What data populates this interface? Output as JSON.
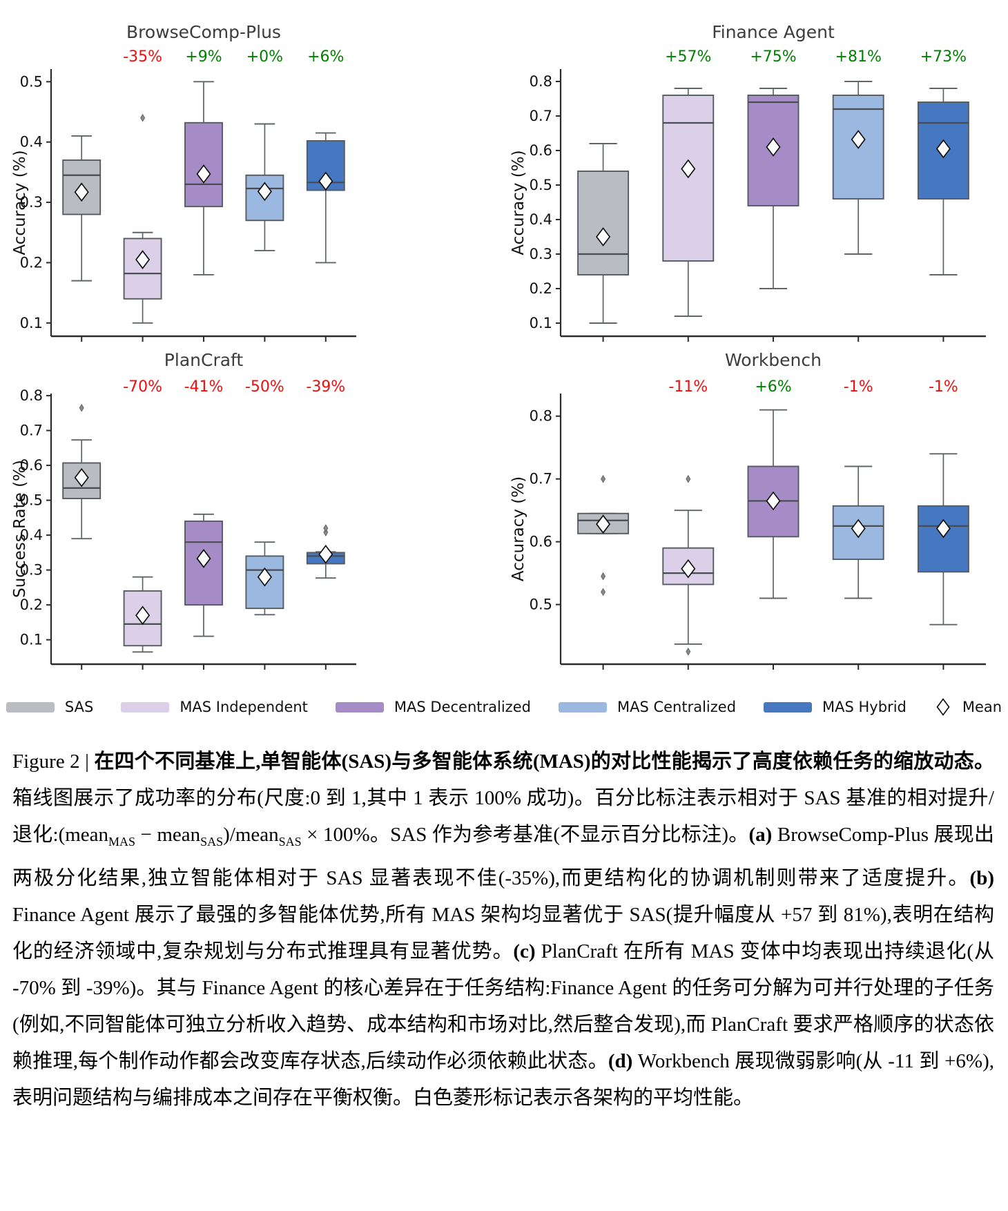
{
  "style": {
    "box_edge": "#555b60",
    "whisker": "#5f6468",
    "median_line": "#474d52",
    "spine": "#2b2b2b",
    "title_color": "#3c3c3c",
    "tick_color": "#111111",
    "red": "#f20d0d",
    "green": "#008000",
    "mean_marker_fill": "#ffffff",
    "mean_marker_edge": "#111111",
    "outlier_color": "#8a8a8a"
  },
  "legend": {
    "items": [
      {
        "label": "SAS",
        "color": "#b9bcc0"
      },
      {
        "label": "MAS Independent",
        "color": "#dcd0e8"
      },
      {
        "label": "MAS Decentralized",
        "color": "#a68cc7"
      },
      {
        "label": "MAS Centralized",
        "color": "#9bb9e0"
      },
      {
        "label": "MAS Hybrid",
        "color": "#4678c2"
      },
      {
        "label": "Mean",
        "marker": "diamond"
      }
    ]
  },
  "chart_data": [
    {
      "type": "box",
      "title": "BrowseComp-Plus",
      "ylabel": "Accuracy (%)",
      "ylim": [
        0.078,
        0.521
      ],
      "yticks": [
        0.1,
        0.2,
        0.3,
        0.4,
        0.5
      ],
      "pct_labels": [
        {
          "text": "-35%",
          "color": "red"
        },
        {
          "text": "+9%",
          "color": "green"
        },
        {
          "text": "+0%",
          "color": "green"
        },
        {
          "text": "+6%",
          "color": "green"
        }
      ],
      "boxes": [
        {
          "name": "SAS",
          "lo": 0.17,
          "q1": 0.28,
          "med": 0.345,
          "q3": 0.37,
          "hi": 0.41,
          "mean": 0.317,
          "outliers": []
        },
        {
          "name": "MAS Independent",
          "lo": 0.1,
          "q1": 0.14,
          "med": 0.182,
          "q3": 0.24,
          "hi": 0.25,
          "mean": 0.205,
          "outliers": [
            0.44
          ]
        },
        {
          "name": "MAS Decentralized",
          "lo": 0.18,
          "q1": 0.293,
          "med": 0.33,
          "q3": 0.432,
          "hi": 0.5,
          "mean": 0.347,
          "outliers": []
        },
        {
          "name": "MAS Centralized",
          "lo": 0.22,
          "q1": 0.27,
          "med": 0.323,
          "q3": 0.345,
          "hi": 0.43,
          "mean": 0.318,
          "outliers": []
        },
        {
          "name": "MAS Hybrid",
          "lo": 0.2,
          "q1": 0.32,
          "med": 0.333,
          "q3": 0.402,
          "hi": 0.415,
          "mean": 0.335,
          "outliers": []
        }
      ]
    },
    {
      "type": "box",
      "title": "Finance Agent",
      "ylabel": "Accuracy (%)",
      "ylim": [
        0.062,
        0.836
      ],
      "yticks": [
        0.1,
        0.2,
        0.3,
        0.4,
        0.5,
        0.6,
        0.7,
        0.8
      ],
      "pct_labels": [
        {
          "text": "+57%",
          "color": "green"
        },
        {
          "text": "+75%",
          "color": "green"
        },
        {
          "text": "+81%",
          "color": "green"
        },
        {
          "text": "+73%",
          "color": "green"
        }
      ],
      "boxes": [
        {
          "name": "SAS",
          "lo": 0.1,
          "q1": 0.24,
          "med": 0.3,
          "q3": 0.54,
          "hi": 0.62,
          "mean": 0.35,
          "outliers": []
        },
        {
          "name": "MAS Independent",
          "lo": 0.12,
          "q1": 0.28,
          "med": 0.68,
          "q3": 0.76,
          "hi": 0.78,
          "mean": 0.547,
          "outliers": []
        },
        {
          "name": "MAS Decentralized",
          "lo": 0.2,
          "q1": 0.44,
          "med": 0.74,
          "q3": 0.76,
          "hi": 0.78,
          "mean": 0.61,
          "outliers": []
        },
        {
          "name": "MAS Centralized",
          "lo": 0.3,
          "q1": 0.46,
          "med": 0.72,
          "q3": 0.76,
          "hi": 0.8,
          "mean": 0.632,
          "outliers": []
        },
        {
          "name": "MAS Hybrid",
          "lo": 0.24,
          "q1": 0.46,
          "med": 0.68,
          "q3": 0.74,
          "hi": 0.78,
          "mean": 0.605,
          "outliers": []
        }
      ]
    },
    {
      "type": "box",
      "title": "PlanCraft",
      "ylabel": "Success Rate (%)",
      "ylim": [
        0.03,
        0.806
      ],
      "yticks": [
        0.1,
        0.2,
        0.3,
        0.4,
        0.5,
        0.6,
        0.7,
        0.8
      ],
      "pct_labels": [
        {
          "text": "-70%",
          "color": "red"
        },
        {
          "text": "-41%",
          "color": "red"
        },
        {
          "text": "-50%",
          "color": "red"
        },
        {
          "text": "-39%",
          "color": "red"
        }
      ],
      "boxes": [
        {
          "name": "SAS",
          "lo": 0.39,
          "q1": 0.505,
          "med": 0.535,
          "q3": 0.607,
          "hi": 0.673,
          "mean": 0.565,
          "outliers": [
            0.765
          ]
        },
        {
          "name": "MAS Independent",
          "lo": 0.065,
          "q1": 0.083,
          "med": 0.145,
          "q3": 0.24,
          "hi": 0.28,
          "mean": 0.17,
          "outliers": []
        },
        {
          "name": "MAS Decentralized",
          "lo": 0.11,
          "q1": 0.2,
          "med": 0.38,
          "q3": 0.44,
          "hi": 0.46,
          "mean": 0.333,
          "outliers": []
        },
        {
          "name": "MAS Centralized",
          "lo": 0.172,
          "q1": 0.19,
          "med": 0.3,
          "q3": 0.34,
          "hi": 0.38,
          "mean": 0.28,
          "outliers": []
        },
        {
          "name": "MAS Hybrid",
          "lo": 0.277,
          "q1": 0.318,
          "med": 0.34,
          "q3": 0.35,
          "hi": 0.352,
          "mean": 0.345,
          "outliers": [
            0.408,
            0.42
          ]
        }
      ]
    },
    {
      "type": "box",
      "title": "Workbench",
      "ylabel": "Accuracy (%)",
      "ylim": [
        0.405,
        0.836
      ],
      "yticks": [
        0.5,
        0.6,
        0.7,
        0.8
      ],
      "pct_labels": [
        {
          "text": "-11%",
          "color": "red"
        },
        {
          "text": "+6%",
          "color": "green"
        },
        {
          "text": "-1%",
          "color": "red"
        },
        {
          "text": "-1%",
          "color": "red"
        }
      ],
      "boxes": [
        {
          "name": "SAS",
          "lo": 0.613,
          "q1": 0.613,
          "med": 0.634,
          "q3": 0.645,
          "hi": 0.645,
          "mean": 0.628,
          "outliers": [
            0.7,
            0.545,
            0.52
          ]
        },
        {
          "name": "MAS Independent",
          "lo": 0.437,
          "q1": 0.532,
          "med": 0.55,
          "q3": 0.59,
          "hi": 0.65,
          "mean": 0.557,
          "outliers": [
            0.7,
            0.425
          ]
        },
        {
          "name": "MAS Decentralized",
          "lo": 0.51,
          "q1": 0.608,
          "med": 0.665,
          "q3": 0.72,
          "hi": 0.81,
          "mean": 0.665,
          "outliers": []
        },
        {
          "name": "MAS Centralized",
          "lo": 0.51,
          "q1": 0.572,
          "med": 0.625,
          "q3": 0.657,
          "hi": 0.72,
          "mean": 0.621,
          "outliers": []
        },
        {
          "name": "MAS Hybrid",
          "lo": 0.468,
          "q1": 0.552,
          "med": 0.625,
          "q3": 0.657,
          "hi": 0.74,
          "mean": 0.621,
          "outliers": []
        }
      ]
    }
  ],
  "caption": {
    "segments": [
      {
        "text": "Figure 2 | ",
        "style": "normal"
      },
      {
        "text": "在四个不同基准上,单智能体(SAS)与多智能体系统(MAS)的对比性能揭示了高度依赖任务的缩放动态。",
        "style": "bold"
      },
      {
        "text": "箱线图展示了成功率的分布(尺度:0 到 1,其中 1 表示 100% 成功)。百分比标注表示相对于 SAS 基准的相对提升/退化:(mean",
        "style": "normal"
      },
      {
        "text": "MAS",
        "style": "sub"
      },
      {
        "text": " − mean",
        "style": "normal"
      },
      {
        "text": "SAS",
        "style": "sub"
      },
      {
        "text": ")/mean",
        "style": "normal"
      },
      {
        "text": "SAS",
        "style": "sub"
      },
      {
        "text": " × 100%。SAS 作为参考基准(不显示百分比标注)。",
        "style": "normal"
      },
      {
        "text": "(a)",
        "style": "bold"
      },
      {
        "text": " BrowseComp-Plus 展现出两极分化结果,独立智能体相对于 SAS 显著表现不佳(-35%),而更结构化的协调机制则带来了适度提升。",
        "style": "normal"
      },
      {
        "text": "(b)",
        "style": "bold"
      },
      {
        "text": " Finance Agent 展示了最强的多智能体优势,所有 MAS 架构均显著优于 SAS(提升幅度从 +57 到 81%),表明在结构化的经济领域中,复杂规划与分布式推理具有显著优势。",
        "style": "normal"
      },
      {
        "text": "(c)",
        "style": "bold"
      },
      {
        "text": " PlanCraft 在所有 MAS 变体中均表现出持续退化(从 -70% 到 -39%)。其与 Finance Agent 的核心差异在于任务结构:Finance Agent 的任务可分解为可并行处理的子任务(例如,不同智能体可独立分析收入趋势、成本结构和市场对比,然后整合发现),而 PlanCraft 要求严格顺序的状态依赖推理,每个制作动作都会改变库存状态,后续动作必须依赖此状态。",
        "style": "normal"
      },
      {
        "text": "(d)",
        "style": "bold"
      },
      {
        "text": " Workbench 展现微弱影响(从 -11 到 +6%),表明问题结构与编排成本之间存在平衡权衡。白色菱形标记表示各架构的平均性能。",
        "style": "normal"
      }
    ]
  }
}
